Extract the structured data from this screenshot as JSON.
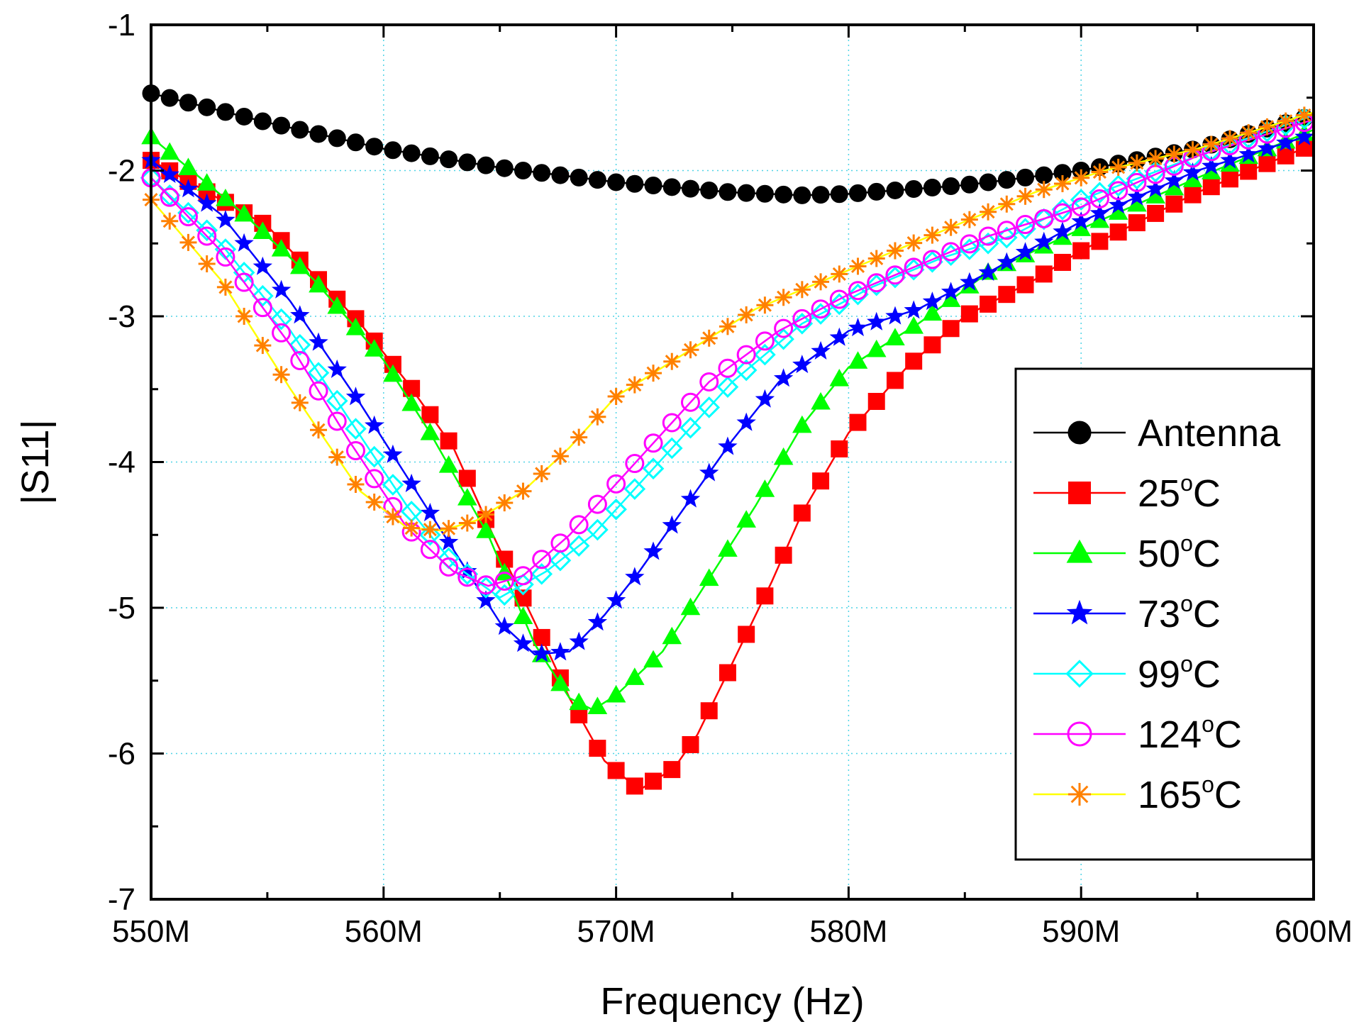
{
  "chart_data": {
    "type": "line",
    "title": "",
    "xlabel": "Frequency (Hz)",
    "ylabel": "|S11|",
    "xlim": [
      550,
      600
    ],
    "ylim": [
      -7,
      -1
    ],
    "x_unit": "MHz",
    "x_ticks": [
      550,
      560,
      570,
      580,
      590,
      600
    ],
    "x_tick_labels": [
      "550M",
      "560M",
      "570M",
      "580M",
      "590M",
      "600M"
    ],
    "y_ticks": [
      -7,
      -6,
      -5,
      -4,
      -3,
      -2,
      -1
    ],
    "y_tick_labels": [
      "-7",
      "-6",
      "-5",
      "-4",
      "-3",
      "-2",
      "-1"
    ],
    "grid": true,
    "grid_style": "dotted cyan",
    "legend_position": "right",
    "series": [
      {
        "name": "Antenna",
        "label_main": "Antenna",
        "label_sup": "",
        "label_tail": "",
        "color": "#000000",
        "marker": "circle-filled",
        "points": [
          [
            550,
            -1.47
          ],
          [
            555,
            -1.67
          ],
          [
            560,
            -1.85
          ],
          [
            565,
            -1.98
          ],
          [
            570,
            -2.08
          ],
          [
            575,
            -2.15
          ],
          [
            578,
            -2.17
          ],
          [
            580,
            -2.16
          ],
          [
            585,
            -2.1
          ],
          [
            590,
            -2.0
          ],
          [
            595,
            -1.85
          ],
          [
            600,
            -1.62
          ]
        ]
      },
      {
        "name": "25°C",
        "label_main": "25",
        "label_sup": "o",
        "label_tail": "C",
        "color": "#ff0000",
        "marker": "square-filled",
        "points": [
          [
            550,
            -1.93
          ],
          [
            555,
            -2.38
          ],
          [
            559,
            -3.05
          ],
          [
            561,
            -3.45
          ],
          [
            563,
            -3.9
          ],
          [
            564.7,
            -4.5
          ],
          [
            566.5,
            -5.1
          ],
          [
            568,
            -5.62
          ],
          [
            569.5,
            -6.05
          ],
          [
            571,
            -6.25
          ],
          [
            572.5,
            -6.1
          ],
          [
            573.5,
            -5.87
          ],
          [
            575,
            -5.38
          ],
          [
            576.7,
            -4.82
          ],
          [
            578,
            -4.35
          ],
          [
            580,
            -3.8
          ],
          [
            582.5,
            -3.35
          ],
          [
            585,
            -3.0
          ],
          [
            588,
            -2.75
          ],
          [
            590,
            -2.55
          ],
          [
            595,
            -2.15
          ],
          [
            600,
            -1.82
          ]
        ]
      },
      {
        "name": "50°C",
        "label_main": "50",
        "label_sup": "o",
        "label_tail": "C",
        "color": "#00ff00",
        "marker": "triangle-filled",
        "points": [
          [
            550,
            -1.77
          ],
          [
            554,
            -2.3
          ],
          [
            557,
            -2.75
          ],
          [
            560,
            -3.3
          ],
          [
            562,
            -3.8
          ],
          [
            564.5,
            -4.5
          ],
          [
            566.5,
            -5.25
          ],
          [
            568,
            -5.62
          ],
          [
            569,
            -5.7
          ],
          [
            570,
            -5.6
          ],
          [
            572,
            -5.3
          ],
          [
            574,
            -4.8
          ],
          [
            576,
            -4.3
          ],
          [
            578,
            -3.75
          ],
          [
            580,
            -3.35
          ],
          [
            583,
            -3.05
          ],
          [
            586,
            -2.7
          ],
          [
            590,
            -2.4
          ],
          [
            595,
            -2.05
          ],
          [
            600,
            -1.72
          ]
        ]
      },
      {
        "name": "73°C",
        "label_main": "73",
        "label_sup": "o",
        "label_tail": "C",
        "color": "#0000ff",
        "marker": "star-filled",
        "points": [
          [
            550,
            -1.93
          ],
          [
            553,
            -2.3
          ],
          [
            556,
            -2.9
          ],
          [
            559,
            -3.6
          ],
          [
            561,
            -4.1
          ],
          [
            563,
            -4.6
          ],
          [
            565,
            -5.1
          ],
          [
            566.5,
            -5.32
          ],
          [
            568,
            -5.3
          ],
          [
            569.5,
            -5.05
          ],
          [
            571,
            -4.75
          ],
          [
            573,
            -4.3
          ],
          [
            575,
            -3.85
          ],
          [
            577,
            -3.45
          ],
          [
            580,
            -3.1
          ],
          [
            583,
            -2.95
          ],
          [
            586,
            -2.7
          ],
          [
            590,
            -2.35
          ],
          [
            595,
            -2.0
          ],
          [
            600,
            -1.75
          ]
        ]
      },
      {
        "name": "99°C",
        "label_main": "99",
        "label_sup": "o",
        "label_tail": "C",
        "color": "#00ffff",
        "marker": "diamond-open",
        "points": [
          [
            550,
            -2.05
          ],
          [
            553,
            -2.5
          ],
          [
            556,
            -3.1
          ],
          [
            558.5,
            -3.7
          ],
          [
            561,
            -4.3
          ],
          [
            563,
            -4.7
          ],
          [
            565,
            -4.93
          ],
          [
            567,
            -4.75
          ],
          [
            569,
            -4.5
          ],
          [
            571,
            -4.15
          ],
          [
            573,
            -3.8
          ],
          [
            575,
            -3.45
          ],
          [
            578,
            -3.05
          ],
          [
            581,
            -2.8
          ],
          [
            584,
            -2.6
          ],
          [
            587,
            -2.45
          ],
          [
            590,
            -2.2
          ],
          [
            595,
            -1.9
          ],
          [
            600,
            -1.62
          ]
        ]
      },
      {
        "name": "124°C",
        "label_main": "124",
        "label_sup": "o",
        "label_tail": "C",
        "color": "#ff00ff",
        "marker": "circle-open",
        "points": [
          [
            550,
            -2.05
          ],
          [
            553,
            -2.55
          ],
          [
            556,
            -3.2
          ],
          [
            558.5,
            -3.85
          ],
          [
            561,
            -4.45
          ],
          [
            563,
            -4.75
          ],
          [
            564.5,
            -4.85
          ],
          [
            566,
            -4.78
          ],
          [
            568,
            -4.5
          ],
          [
            570,
            -4.15
          ],
          [
            572,
            -3.8
          ],
          [
            574,
            -3.45
          ],
          [
            577,
            -3.1
          ],
          [
            580,
            -2.85
          ],
          [
            583,
            -2.65
          ],
          [
            586,
            -2.45
          ],
          [
            590,
            -2.25
          ],
          [
            595,
            -1.9
          ],
          [
            600,
            -1.65
          ]
        ]
      },
      {
        "name": "165°C",
        "label_main": "165",
        "label_sup": "o",
        "label_tail": "C",
        "color": "#ff8000",
        "line_color": "#ffff00",
        "marker": "asterisk",
        "points": [
          [
            550,
            -2.2
          ],
          [
            553,
            -2.75
          ],
          [
            556,
            -3.5
          ],
          [
            559,
            -4.2
          ],
          [
            561,
            -4.45
          ],
          [
            562.5,
            -4.47
          ],
          [
            564,
            -4.4
          ],
          [
            566,
            -4.2
          ],
          [
            568,
            -3.9
          ],
          [
            570,
            -3.55
          ],
          [
            573,
            -3.25
          ],
          [
            576,
            -2.95
          ],
          [
            579,
            -2.75
          ],
          [
            582,
            -2.55
          ],
          [
            585,
            -2.35
          ],
          [
            588,
            -2.15
          ],
          [
            591,
            -2.0
          ],
          [
            595,
            -1.85
          ],
          [
            600,
            -1.6
          ]
        ]
      }
    ]
  }
}
